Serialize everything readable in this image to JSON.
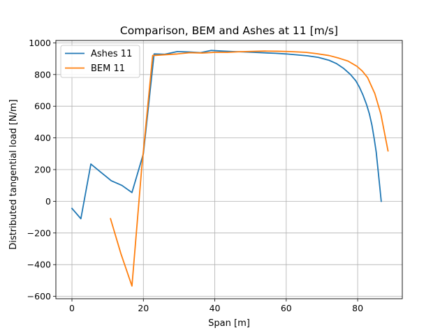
{
  "chart_data": {
    "type": "line",
    "title": "Comparison, BEM and Ashes at 11 [m/s]",
    "xlabel": "Span [m]",
    "ylabel": "Distributed tangential load [N/m]",
    "xlim": [
      -4.5,
      92.5
    ],
    "ylim": [
      -615,
      1015
    ],
    "xticks": [
      0,
      20,
      40,
      60,
      80
    ],
    "yticks": [
      -600,
      -400,
      -200,
      0,
      200,
      400,
      600,
      800,
      1000
    ],
    "grid": true,
    "legend_position": "upper-left",
    "series": [
      {
        "name": "Ashes 11",
        "color": "#1f77b4",
        "x": [
          0,
          2.5,
          5.3,
          8,
          11,
          14,
          16.8,
          20,
          23,
          26,
          29.5,
          33,
          36,
          39,
          42,
          45,
          48,
          51,
          54,
          57,
          60,
          63,
          66,
          69,
          72,
          74,
          76,
          78,
          79.5,
          80.5,
          81.5,
          82.5,
          83.3,
          84,
          84.6,
          85.2,
          85.7,
          86.2,
          86.6
        ],
        "y": [
          -45,
          -110,
          235,
          185,
          130,
          100,
          55,
          300,
          930,
          928,
          945,
          942,
          938,
          952,
          948,
          945,
          943,
          940,
          937,
          934,
          930,
          924,
          918,
          908,
          890,
          870,
          840,
          800,
          760,
          720,
          670,
          610,
          550,
          480,
          400,
          310,
          200,
          90,
          0
        ]
      },
      {
        "name": "BEM 11",
        "color": "#ff7f0e",
        "x": [
          10.8,
          13.7,
          16.8,
          19.5,
          22.6,
          26,
          29.5,
          33,
          36.5,
          40,
          43.5,
          47,
          50.5,
          54,
          57.5,
          61,
          65.5,
          68.5,
          72,
          74.8,
          77.3,
          79.8,
          81.3,
          82.8,
          84.8,
          86.5,
          88.5
        ],
        "y": [
          -110,
          -330,
          -535,
          200,
          920,
          925,
          930,
          938,
          936,
          940,
          940,
          944,
          946,
          948,
          947,
          945,
          940,
          932,
          920,
          903,
          885,
          852,
          822,
          780,
          680,
          550,
          318
        ]
      }
    ]
  }
}
